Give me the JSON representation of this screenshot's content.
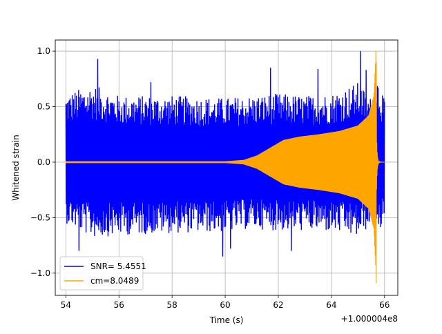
{
  "chart_data": {
    "type": "line",
    "title": "",
    "xlabel": "Time (s)",
    "ylabel": "Whitened strain",
    "x_offset_label": "+1.000004e8",
    "xlim": [
      53.6,
      66.5
    ],
    "ylim": [
      -1.2,
      1.1
    ],
    "xticks": [
      54,
      56,
      58,
      60,
      62,
      64,
      66
    ],
    "yticks": [
      -1.0,
      -0.5,
      0.0,
      0.5,
      1.0
    ],
    "ytick_labels": [
      "−1.0",
      "−0.5",
      "0.0",
      "0.5",
      "1.0"
    ],
    "grid": true,
    "legend_position": "lower-left",
    "series": [
      {
        "name": "SNR= 5.4551",
        "color": "#0000ff",
        "kind": "noise",
        "x_range": [
          54.0,
          66.0
        ],
        "envelope_knots": [
          [
            54.0,
            0.62,
            -0.55
          ],
          [
            55.0,
            0.7,
            -0.68
          ],
          [
            56.0,
            0.6,
            -0.66
          ],
          [
            58.0,
            0.6,
            -0.64
          ],
          [
            60.0,
            0.58,
            -0.63
          ],
          [
            61.0,
            0.6,
            -0.6
          ],
          [
            62.0,
            0.62,
            -0.62
          ],
          [
            63.0,
            0.6,
            -0.62
          ],
          [
            64.0,
            0.62,
            -0.63
          ],
          [
            65.0,
            0.72,
            -0.68
          ],
          [
            65.6,
            0.55,
            -0.55
          ],
          [
            65.75,
            0.8,
            -0.7
          ],
          [
            66.0,
            0.55,
            -0.5
          ]
        ],
        "spikes": [
          [
            55.2,
            0.93
          ],
          [
            57.2,
            0.72
          ],
          [
            59.2,
            -0.82
          ],
          [
            59.9,
            -0.85
          ],
          [
            61.7,
            0.85
          ],
          [
            62.5,
            -0.8
          ],
          [
            63.5,
            0.84
          ],
          [
            65.1,
            1.0
          ],
          [
            65.3,
            0.83
          ],
          [
            65.6,
            -0.65
          ],
          [
            65.85,
            0.75
          ],
          [
            54.5,
            -0.8
          ],
          [
            56.4,
            -0.72
          ],
          [
            60.2,
            -0.78
          ]
        ]
      },
      {
        "name": "cm=8.0489",
        "color": "#ffa500",
        "kind": "chirp",
        "x_range": [
          54.0,
          66.0
        ],
        "merger_time": 65.68,
        "amplitude_knots": [
          [
            54.0,
            0.008
          ],
          [
            60.0,
            0.008
          ],
          [
            60.7,
            0.02
          ],
          [
            61.2,
            0.06
          ],
          [
            61.7,
            0.13
          ],
          [
            62.2,
            0.2
          ],
          [
            62.8,
            0.23
          ],
          [
            63.5,
            0.25
          ],
          [
            64.3,
            0.28
          ],
          [
            65.0,
            0.33
          ],
          [
            65.4,
            0.42
          ],
          [
            65.6,
            0.6
          ],
          [
            65.68,
            1.0
          ]
        ],
        "peak_max": 1.0,
        "peak_min": -1.09
      }
    ]
  }
}
